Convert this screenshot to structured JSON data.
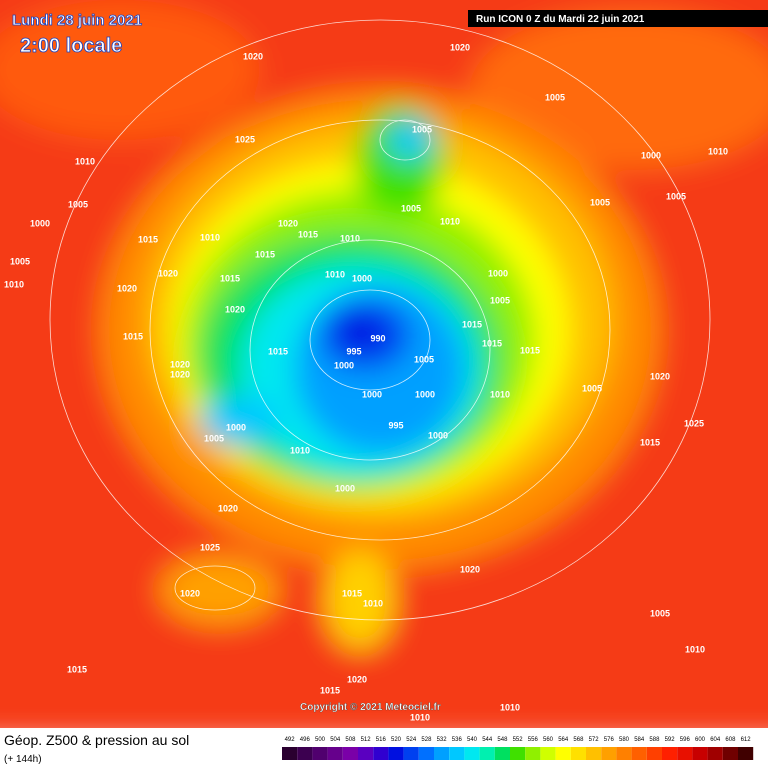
{
  "header": {
    "date": "Lundi 28 juin 2021",
    "time": "2:00 locale",
    "run": "Run ICON 0 Z du Mardi 22 juin 2021"
  },
  "footer": {
    "title": "Géop. Z500 & pression au sol",
    "subtitle": "(+ 144h)",
    "copyright": "Copyright © 2021 Meteociel.fr"
  },
  "legend": [
    {
      "value": 492,
      "color": "#2a0030"
    },
    {
      "value": 496,
      "color": "#3c0050"
    },
    {
      "value": 500,
      "color": "#50006e"
    },
    {
      "value": 504,
      "color": "#66008c"
    },
    {
      "value": 508,
      "color": "#7a00a8"
    },
    {
      "value": 512,
      "color": "#5a00c0"
    },
    {
      "value": 516,
      "color": "#3000d0"
    },
    {
      "value": 520,
      "color": "#0010e0"
    },
    {
      "value": 524,
      "color": "#0040f0"
    },
    {
      "value": 528,
      "color": "#0070ff"
    },
    {
      "value": 532,
      "color": "#00a0ff"
    },
    {
      "value": 536,
      "color": "#00c8ff"
    },
    {
      "value": 540,
      "color": "#00e8f0"
    },
    {
      "value": 544,
      "color": "#00f0b0"
    },
    {
      "value": 548,
      "color": "#00e060"
    },
    {
      "value": 552,
      "color": "#40e000"
    },
    {
      "value": 556,
      "color": "#90f000"
    },
    {
      "value": 560,
      "color": "#d0ff00"
    },
    {
      "value": 564,
      "color": "#ffff00"
    },
    {
      "value": 568,
      "color": "#ffe000"
    },
    {
      "value": 572,
      "color": "#ffc000"
    },
    {
      "value": 576,
      "color": "#ffa000"
    },
    {
      "value": 580,
      "color": "#ff8000"
    },
    {
      "value": 584,
      "color": "#ff6000"
    },
    {
      "value": 588,
      "color": "#ff4000"
    },
    {
      "value": 592,
      "color": "#ff2000"
    },
    {
      "value": 596,
      "color": "#e81000"
    },
    {
      "value": 600,
      "color": "#c80000"
    },
    {
      "value": 604,
      "color": "#a00000"
    },
    {
      "value": 608,
      "color": "#700000"
    },
    {
      "value": 612,
      "color": "#400000"
    }
  ],
  "pressure_labels": [
    1020,
    1020,
    1005,
    1005,
    1025,
    1010,
    1000,
    1010,
    1005,
    1005,
    1010,
    1005,
    1005,
    1020,
    1015,
    1010,
    1000,
    1015,
    1010,
    1015,
    1000,
    1010,
    1000,
    1020,
    1005,
    1010,
    1015,
    1020,
    1005,
    1020,
    1015,
    1015,
    990,
    995,
    1015,
    1015,
    1015,
    1000,
    1005,
    1020,
    1020,
    1000,
    1000,
    1010,
    1020,
    1005,
    995,
    1000,
    1005,
    1000,
    1010,
    1015,
    1025,
    1000,
    1020,
    1025,
    1020,
    1015,
    1010,
    1020,
    1015,
    1015,
    1020,
    1010,
    1010,
    1005,
    1010
  ]
}
